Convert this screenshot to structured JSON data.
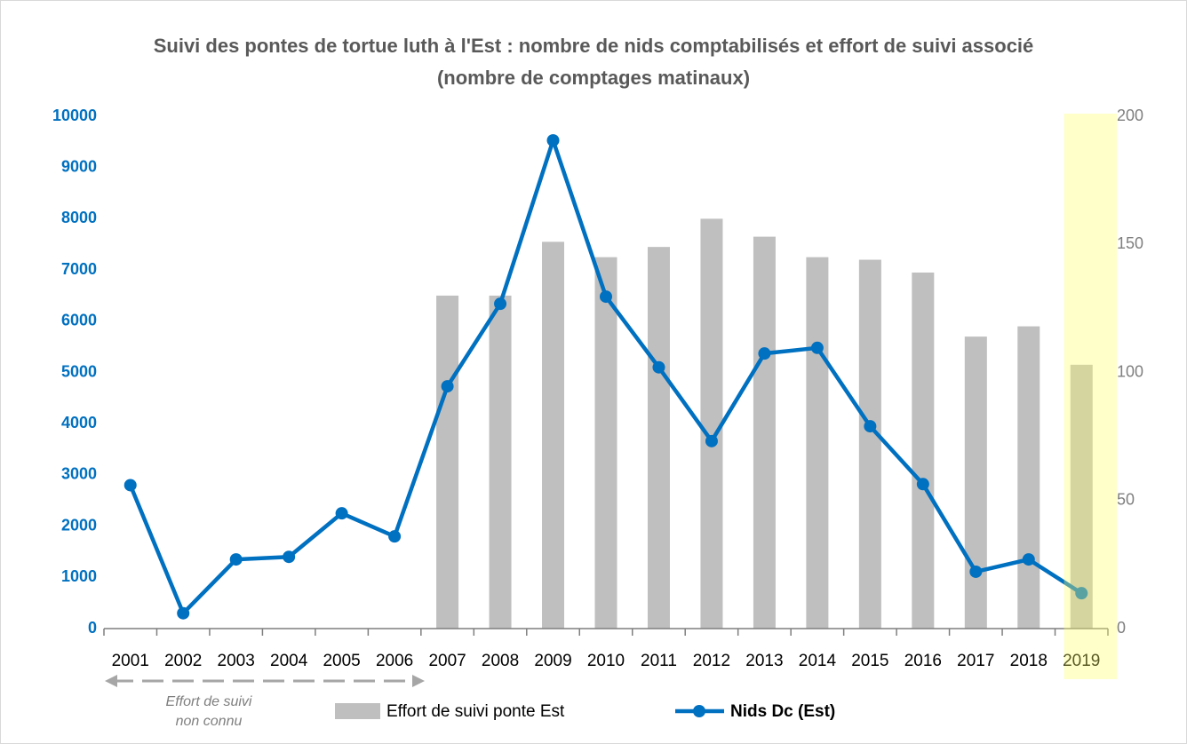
{
  "chart_data": {
    "type": "combo",
    "title": "Suivi des pontes de tortue luth à l'Est : nombre de nids comptabilisés et effort de suivi associé (nombre de comptages matinaux)",
    "categories": [
      "2001",
      "2002",
      "2003",
      "2004",
      "2005",
      "2006",
      "2007",
      "2008",
      "2009",
      "2010",
      "2011",
      "2012",
      "2013",
      "2014",
      "2015",
      "2016",
      "2017",
      "2018",
      "2019"
    ],
    "series": [
      {
        "name": "Effort de suivi ponte Est",
        "type": "bar",
        "axis": "y2",
        "color": "#bfbfbf",
        "values": [
          null,
          null,
          null,
          null,
          null,
          null,
          130,
          130,
          151,
          145,
          149,
          160,
          153,
          145,
          144,
          139,
          114,
          118,
          103
        ]
      },
      {
        "name": "Nids Dc (Est)",
        "type": "line",
        "color": "#0070c0",
        "values": [
          2800,
          300,
          1350,
          1400,
          2250,
          1800,
          4730,
          6340,
          9530,
          6480,
          5100,
          3660,
          5370,
          5480,
          3950,
          2820,
          1110,
          1350,
          690
        ]
      }
    ],
    "ylim": [
      0,
      10000
    ],
    "yticks": [
      0,
      1000,
      2000,
      3000,
      4000,
      5000,
      6000,
      7000,
      8000,
      9000,
      10000
    ],
    "y2lim": [
      0,
      200
    ],
    "y2ticks": [
      0,
      50,
      100,
      150,
      200
    ],
    "highlight": "2019",
    "annotation": [
      "Effort de suivi",
      "non connu"
    ],
    "legend": "bottom"
  }
}
